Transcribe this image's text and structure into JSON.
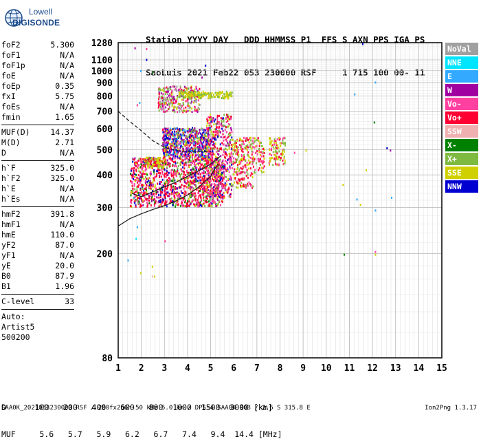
{
  "logo": {
    "line1": "Lowell",
    "line2": "DIGISONDE"
  },
  "header": {
    "line1": "Station YYYY DAY   DDD HHMMSS P1  FFS S AXN PPS IGA PS",
    "line2": "SaoLuis 2021 Feb22 053 230000 RSF     1 715 100 00- 11"
  },
  "params": [
    [
      [
        "foF2",
        "5.300"
      ],
      [
        "foF1",
        "N/A"
      ],
      [
        "foF1p",
        "N/A"
      ],
      [
        "foE",
        "N/A"
      ],
      [
        "foEp",
        "0.35"
      ],
      [
        "fxI",
        "5.75"
      ],
      [
        "foEs",
        "N/A"
      ],
      [
        "fmin",
        "1.65"
      ]
    ],
    [
      [
        "MUF(D)",
        "14.37"
      ],
      [
        "M(D)",
        "2.71"
      ],
      [
        "D",
        "N/A"
      ]
    ],
    [
      [
        "h`F",
        "325.0"
      ],
      [
        "h`F2",
        "325.0"
      ],
      [
        "h`E",
        "N/A"
      ],
      [
        "h`Es",
        "N/A"
      ]
    ],
    [
      [
        "hmF2",
        "391.8"
      ],
      [
        "hmF1",
        "N/A"
      ],
      [
        "hmE",
        "110.0"
      ],
      [
        "yF2",
        "87.0"
      ],
      [
        "yF1",
        "N/A"
      ],
      [
        "yE",
        "20.0"
      ],
      [
        "B0",
        "87.9"
      ],
      [
        "B1",
        "1.96"
      ]
    ],
    [
      [
        "C-level",
        "33"
      ]
    ],
    [
      [
        "Auto:",
        ""
      ],
      [
        "Artist5",
        ""
      ],
      [
        "500200",
        ""
      ]
    ]
  ],
  "legend": [
    {
      "label": "NoVal",
      "color": "#a0a0a0"
    },
    {
      "label": "NNE",
      "color": "#00e5ff"
    },
    {
      "label": "E",
      "color": "#33aaff"
    },
    {
      "label": "W",
      "color": "#a000a0"
    },
    {
      "label": "Vo-",
      "color": "#ff40a0"
    },
    {
      "label": "Vo+",
      "color": "#ff0033"
    },
    {
      "label": "SSW",
      "color": "#f0b0b0"
    },
    {
      "label": "X-",
      "color": "#008000"
    },
    {
      "label": "X+",
      "color": "#7fba40"
    },
    {
      "label": "SSE",
      "color": "#d0d000"
    },
    {
      "label": "NNW",
      "color": "#0000d0"
    }
  ],
  "footer": {
    "d_line": "D      100   200   400   600   800  1000  1500  3000 [km]",
    "muf_line": "MUF     5.6   5.7   5.9   6.2   6.7   7.4   9.4  14.4 [MHz]",
    "file_line": "SAA0K_2021053230000.RSF / 280fx256h 50 kHz 5.0 km / DPS-4 SAA0K 903 / 2.6 S 315.8 E",
    "version": "Ion2Png 1.3.17"
  },
  "chart_data": {
    "type": "scatter",
    "x_ticks": [
      1,
      2,
      3,
      4,
      5,
      6,
      7,
      8,
      9,
      10,
      11,
      12,
      13,
      14,
      15
    ],
    "y_ticks": [
      80,
      200,
      300,
      400,
      500,
      600,
      700,
      800,
      900,
      1000,
      1100,
      1280
    ],
    "xlim": [
      1,
      15
    ],
    "y_scale": "log",
    "ylim": [
      80,
      1280
    ],
    "clusters": [
      {
        "xr": [
          1.5,
          5.5
        ],
        "yr": [
          305,
          470
        ],
        "n": 1300,
        "colors": [
          5,
          5,
          5,
          4,
          4,
          9,
          8,
          7,
          3,
          10,
          5
        ]
      },
      {
        "xr": [
          2.9,
          4.9
        ],
        "yr": [
          470,
          610
        ],
        "n": 650,
        "colors": [
          10,
          10,
          3,
          3,
          4,
          5,
          9,
          8,
          2
        ]
      },
      {
        "xr": [
          4.8,
          5.9
        ],
        "yr": [
          330,
          690
        ],
        "n": 500,
        "colors": [
          5,
          5,
          4,
          4,
          9,
          8,
          3,
          10
        ]
      },
      {
        "xr": [
          5.9,
          6.8
        ],
        "yr": [
          360,
          560
        ],
        "n": 220,
        "colors": [
          5,
          5,
          4,
          9,
          8
        ]
      },
      {
        "xr": [
          6.8,
          7.3
        ],
        "yr": [
          410,
          560
        ],
        "n": 70,
        "colors": [
          9,
          4,
          5,
          8
        ]
      },
      {
        "xr": [
          7.5,
          8.2
        ],
        "yr": [
          440,
          560
        ],
        "n": 110,
        "colors": [
          9,
          9,
          8,
          4,
          5
        ]
      },
      {
        "xr": [
          2.7,
          4.5
        ],
        "yr": [
          700,
          880
        ],
        "n": 300,
        "colors": [
          5,
          4,
          9,
          8,
          3,
          0
        ]
      },
      {
        "xr": [
          3.6,
          5.9
        ],
        "yr": [
          790,
          840
        ],
        "n": 160,
        "colors": [
          9,
          9,
          8
        ]
      },
      {
        "xr": [
          2.1,
          3.0
        ],
        "yr": [
          430,
          470
        ],
        "n": 90,
        "colors": [
          9,
          9,
          8,
          5
        ]
      }
    ],
    "stray_points": [
      [
        1.7,
        1230,
        3
      ],
      [
        2.2,
        1220,
        4
      ],
      [
        2.2,
        1110,
        10
      ],
      [
        1.95,
        1005,
        2
      ],
      [
        2.45,
        995,
        7
      ],
      [
        1.9,
        760,
        2
      ],
      [
        1.8,
        745,
        4
      ],
      [
        1.65,
        330,
        2
      ],
      [
        1.8,
        255,
        2
      ],
      [
        1.75,
        230,
        1
      ],
      [
        1.4,
        190,
        2
      ],
      [
        1.95,
        170,
        9
      ],
      [
        2.45,
        180,
        9
      ],
      [
        2.45,
        165,
        6
      ],
      [
        2.55,
        165,
        9
      ],
      [
        3.0,
        225,
        4
      ],
      [
        4.75,
        1055,
        10
      ],
      [
        4.6,
        950,
        3
      ],
      [
        12.1,
        910,
        2
      ],
      [
        11.2,
        820,
        2
      ],
      [
        12.05,
        640,
        7
      ],
      [
        12.6,
        510,
        10
      ],
      [
        12.75,
        500,
        3
      ],
      [
        12.8,
        330,
        2
      ],
      [
        12.1,
        295,
        2
      ],
      [
        11.55,
        1275,
        10
      ],
      [
        10.7,
        370,
        9
      ],
      [
        11.45,
        310,
        9
      ],
      [
        12.1,
        200,
        9
      ],
      [
        12.1,
        205,
        4
      ],
      [
        10.75,
        200,
        7
      ],
      [
        11.3,
        325,
        2
      ],
      [
        11.7,
        420,
        9
      ],
      [
        9.1,
        500,
        9
      ],
      [
        8.6,
        490,
        4
      ]
    ],
    "curves": [
      {
        "style": "dashed",
        "points": [
          [
            1,
            700
          ],
          [
            1.5,
            640
          ],
          [
            2,
            590
          ],
          [
            2.5,
            540
          ],
          [
            3,
            510
          ],
          [
            3.5,
            495
          ],
          [
            4,
            490
          ],
          [
            4.5,
            490
          ],
          [
            5,
            492
          ]
        ]
      },
      {
        "style": "solid",
        "points": [
          [
            1,
            255
          ],
          [
            1.5,
            272
          ],
          [
            2,
            284
          ],
          [
            2.5,
            295
          ],
          [
            3,
            305
          ],
          [
            3.5,
            318
          ],
          [
            4,
            335
          ],
          [
            4.5,
            360
          ],
          [
            5,
            395
          ],
          [
            5.3,
            440
          ]
        ]
      },
      {
        "style": "solid",
        "points": [
          [
            1.6,
            340
          ],
          [
            2,
            330
          ],
          [
            2.5,
            345
          ],
          [
            3,
            360
          ],
          [
            3.5,
            375
          ],
          [
            4,
            395
          ],
          [
            4.5,
            415
          ],
          [
            5,
            440
          ],
          [
            5.4,
            470
          ]
        ]
      }
    ]
  }
}
